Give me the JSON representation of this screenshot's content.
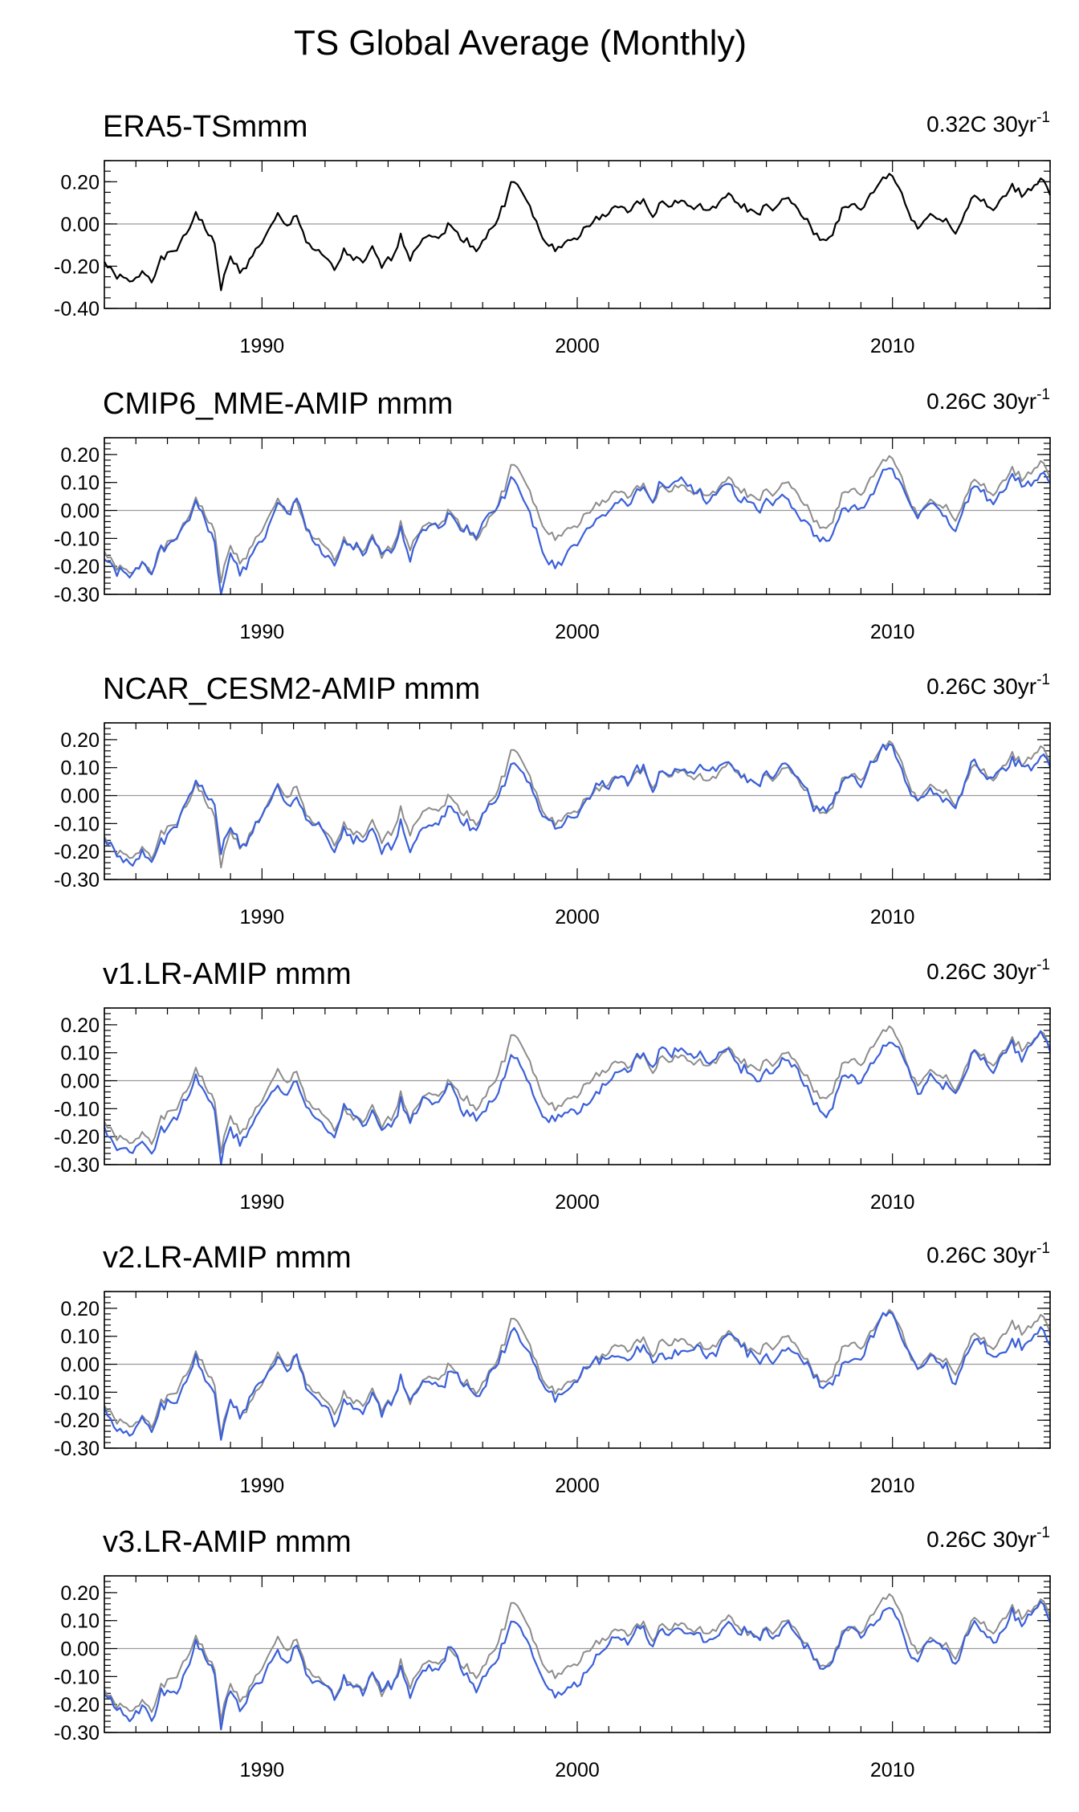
{
  "figure_title": "TS Global Average (Monthly)",
  "colors": {
    "observed": "#000000",
    "reference": "#8c8c8c",
    "model": "#3a5fd9",
    "zero_line": "#9a9a9a"
  },
  "chart_data": [
    {
      "type": "line",
      "title": "ERA5-TSmmm",
      "trend_label": "0.32C 30yr",
      "trend_sup": "-1",
      "xlim": [
        1985,
        2015
      ],
      "ylim": [
        -0.4,
        0.3
      ],
      "xticks": [
        1990,
        2000,
        2010
      ],
      "yticks": [
        0.2,
        0.0,
        -0.2,
        -0.4
      ],
      "ytick_labels": [
        "0.20",
        "0.00",
        "-0.20",
        "-0.40"
      ],
      "series": [
        {
          "name": "ERA5",
          "color": "#000000",
          "x": [
            1985.0,
            1985.3,
            1985.6,
            1985.9,
            1986.2,
            1986.5,
            1986.8,
            1987.1,
            1987.4,
            1987.7,
            1987.9,
            1988.2,
            1988.5,
            1988.7,
            1989.0,
            1989.3,
            1989.6,
            1989.9,
            1990.2,
            1990.5,
            1990.8,
            1991.1,
            1991.4,
            1991.7,
            1992.0,
            1992.3,
            1992.6,
            1992.9,
            1993.2,
            1993.5,
            1993.8,
            1994.1,
            1994.4,
            1994.7,
            1995.0,
            1995.3,
            1995.6,
            1995.9,
            1996.2,
            1996.5,
            1996.8,
            1997.1,
            1997.4,
            1997.7,
            1997.9,
            1998.2,
            1998.5,
            1998.8,
            1999.1,
            1999.4,
            1999.7,
            2000.0,
            2000.3,
            2000.6,
            2000.9,
            2001.2,
            2001.5,
            2001.8,
            2002.1,
            2002.4,
            2002.7,
            2003.0,
            2003.3,
            2003.6,
            2003.9,
            2004.2,
            2004.5,
            2004.8,
            2005.1,
            2005.4,
            2005.7,
            2006.0,
            2006.3,
            2006.6,
            2006.9,
            2007.2,
            2007.5,
            2007.8,
            2008.1,
            2008.4,
            2008.7,
            2009.0,
            2009.3,
            2009.6,
            2009.9,
            2010.2,
            2010.5,
            2010.8,
            2011.1,
            2011.4,
            2011.7,
            2012.0,
            2012.3,
            2012.6,
            2012.9,
            2013.2,
            2013.5,
            2013.8,
            2014.1,
            2014.4,
            2014.7,
            2015.0
          ],
          "values": [
            -0.18,
            -0.24,
            -0.26,
            -0.28,
            -0.22,
            -0.26,
            -0.17,
            -0.14,
            -0.1,
            -0.02,
            0.06,
            -0.02,
            -0.1,
            -0.3,
            -0.16,
            -0.22,
            -0.18,
            -0.1,
            -0.04,
            0.04,
            -0.02,
            0.05,
            -0.08,
            -0.13,
            -0.16,
            -0.22,
            -0.13,
            -0.16,
            -0.19,
            -0.12,
            -0.2,
            -0.16,
            -0.06,
            -0.16,
            -0.08,
            -0.04,
            -0.08,
            0.0,
            -0.05,
            -0.08,
            -0.12,
            -0.06,
            0.0,
            0.1,
            0.21,
            0.16,
            0.08,
            -0.04,
            -0.1,
            -0.12,
            -0.08,
            -0.06,
            -0.02,
            0.02,
            0.05,
            0.08,
            0.06,
            0.09,
            0.11,
            0.05,
            0.1,
            0.09,
            0.12,
            0.07,
            0.09,
            0.05,
            0.11,
            0.13,
            0.1,
            0.07,
            0.05,
            0.08,
            0.07,
            0.12,
            0.09,
            0.03,
            -0.04,
            -0.08,
            -0.04,
            0.06,
            0.09,
            0.07,
            0.13,
            0.2,
            0.24,
            0.18,
            0.06,
            -0.02,
            0.03,
            0.04,
            0.02,
            -0.05,
            0.06,
            0.14,
            0.1,
            0.06,
            0.12,
            0.18,
            0.14,
            0.17,
            0.22,
            0.15
          ]
        }
      ]
    },
    {
      "type": "line",
      "title": "CMIP6_MME-AMIP  mmm",
      "trend_label": "0.26C 30yr",
      "trend_sup": "-1",
      "xlim": [
        1985,
        2015
      ],
      "ylim": [
        -0.3,
        0.26
      ],
      "xticks": [
        1990,
        2000,
        2010
      ],
      "yticks": [
        0.2,
        0.1,
        0.0,
        -0.1,
        -0.2,
        -0.3
      ],
      "ytick_labels": [
        "0.20",
        "0.10",
        "0.00",
        "-0.10",
        "-0.20",
        "-0.30"
      ],
      "series": [
        {
          "name": "ERA5",
          "color": "#8c8c8c",
          "ref": 0,
          "offset": 0.0
        },
        {
          "name": "CMIP6_MME-AMIP",
          "color": "#3a5fd9",
          "ref": 0,
          "offset": -0.02,
          "seed": 3
        }
      ]
    },
    {
      "type": "line",
      "title": "NCAR_CESM2-AMIP  mmm",
      "trend_label": "0.26C 30yr",
      "trend_sup": "-1",
      "xlim": [
        1985,
        2015
      ],
      "ylim": [
        -0.3,
        0.26
      ],
      "xticks": [
        1990,
        2000,
        2010
      ],
      "yticks": [
        0.2,
        0.1,
        0.0,
        -0.1,
        -0.2,
        -0.3
      ],
      "ytick_labels": [
        "0.20",
        "0.10",
        "0.00",
        "-0.10",
        "-0.20",
        "-0.30"
      ],
      "series": [
        {
          "name": "ERA5",
          "color": "#8c8c8c",
          "ref": 0,
          "offset": 0.0
        },
        {
          "name": "NCAR_CESM2-AMIP",
          "color": "#3a5fd9",
          "ref": 0,
          "offset": -0.02,
          "seed": 5
        }
      ]
    },
    {
      "type": "line",
      "title": "v1.LR-AMIP  mmm",
      "trend_label": "0.26C 30yr",
      "trend_sup": "-1",
      "xlim": [
        1985,
        2015
      ],
      "ylim": [
        -0.3,
        0.26
      ],
      "xticks": [
        1990,
        2000,
        2010
      ],
      "yticks": [
        0.2,
        0.1,
        0.0,
        -0.1,
        -0.2,
        -0.3
      ],
      "ytick_labels": [
        "0.20",
        "0.10",
        "0.00",
        "-0.10",
        "-0.20",
        "-0.30"
      ],
      "series": [
        {
          "name": "ERA5",
          "color": "#8c8c8c",
          "ref": 0,
          "offset": 0.0
        },
        {
          "name": "v1.LR-AMIP",
          "color": "#3a5fd9",
          "ref": 0,
          "offset": -0.02,
          "seed": 7
        }
      ]
    },
    {
      "type": "line",
      "title": "v2.LR-AMIP  mmm",
      "trend_label": "0.26C 30yr",
      "trend_sup": "-1",
      "xlim": [
        1985,
        2015
      ],
      "ylim": [
        -0.3,
        0.26
      ],
      "xticks": [
        1990,
        2000,
        2010
      ],
      "yticks": [
        0.2,
        0.1,
        0.0,
        -0.1,
        -0.2,
        -0.3
      ],
      "ytick_labels": [
        "0.20",
        "0.10",
        "0.00",
        "-0.10",
        "-0.20",
        "-0.30"
      ],
      "series": [
        {
          "name": "ERA5",
          "color": "#8c8c8c",
          "ref": 0,
          "offset": 0.0
        },
        {
          "name": "v2.LR-AMIP",
          "color": "#3a5fd9",
          "ref": 0,
          "offset": -0.02,
          "seed": 11
        }
      ]
    },
    {
      "type": "line",
      "title": "v3.LR-AMIP  mmm",
      "trend_label": "0.26C 30yr",
      "trend_sup": "-1",
      "xlim": [
        1985,
        2015
      ],
      "ylim": [
        -0.3,
        0.26
      ],
      "xticks": [
        1990,
        2000,
        2010
      ],
      "yticks": [
        0.2,
        0.1,
        0.0,
        -0.1,
        -0.2,
        -0.3
      ],
      "ytick_labels": [
        "0.20",
        "0.10",
        "0.00",
        "-0.10",
        "-0.20",
        "-0.30"
      ],
      "series": [
        {
          "name": "ERA5",
          "color": "#8c8c8c",
          "ref": 0,
          "offset": 0.0
        },
        {
          "name": "v3.LR-AMIP",
          "color": "#3a5fd9",
          "ref": 0,
          "offset": -0.02,
          "seed": 13
        }
      ]
    }
  ]
}
